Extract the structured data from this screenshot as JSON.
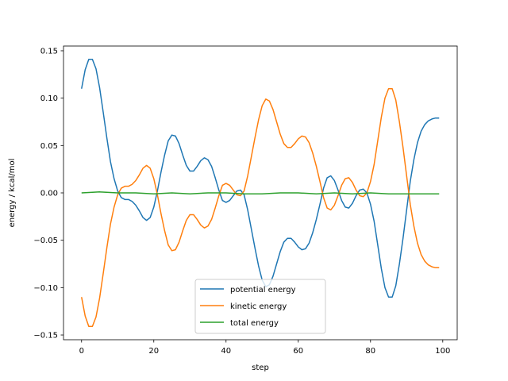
{
  "chart_data": {
    "type": "line",
    "title": "",
    "xlabel": "step",
    "ylabel": "energy / kcal/mol",
    "xlim": [
      -5,
      104
    ],
    "ylim": [
      -0.155,
      0.155
    ],
    "xticks": [
      0,
      20,
      40,
      60,
      80,
      100
    ],
    "yticks": [
      -0.15,
      -0.1,
      -0.05,
      0.0,
      0.05,
      0.1,
      0.15
    ],
    "xtick_labels": [
      "0",
      "20",
      "40",
      "60",
      "80",
      "100"
    ],
    "ytick_labels": [
      "−0.15",
      "−0.10",
      "−0.05",
      "0.00",
      "0.05",
      "0.10",
      "0.15"
    ],
    "grid": false,
    "legend_position": "lower-center",
    "series": [
      {
        "name": "potential energy",
        "color": "#1f77b4",
        "points": [
          [
            0,
            0.11
          ],
          [
            1,
            0.13
          ],
          [
            2,
            0.141
          ],
          [
            3,
            0.141
          ],
          [
            4,
            0.131
          ],
          [
            5,
            0.111
          ],
          [
            6,
            0.085
          ],
          [
            7,
            0.058
          ],
          [
            8,
            0.033
          ],
          [
            9,
            0.015
          ],
          [
            10,
            0.002
          ],
          [
            11,
            -0.005
          ],
          [
            12,
            -0.007
          ],
          [
            13,
            -0.007
          ],
          [
            14,
            -0.009
          ],
          [
            15,
            -0.013
          ],
          [
            16,
            -0.019
          ],
          [
            17,
            -0.026
          ],
          [
            18,
            -0.029
          ],
          [
            19,
            -0.026
          ],
          [
            20,
            -0.015
          ],
          [
            21,
            0.002
          ],
          [
            22,
            0.022
          ],
          [
            23,
            0.04
          ],
          [
            24,
            0.055
          ],
          [
            25,
            0.061
          ],
          [
            26,
            0.06
          ],
          [
            27,
            0.052
          ],
          [
            28,
            0.04
          ],
          [
            29,
            0.029
          ],
          [
            30,
            0.023
          ],
          [
            31,
            0.023
          ],
          [
            32,
            0.028
          ],
          [
            33,
            0.034
          ],
          [
            34,
            0.037
          ],
          [
            35,
            0.035
          ],
          [
            36,
            0.028
          ],
          [
            37,
            0.016
          ],
          [
            38,
            0.003
          ],
          [
            39,
            -0.008
          ],
          [
            40,
            -0.01
          ],
          [
            41,
            -0.008
          ],
          [
            42,
            -0.003
          ],
          [
            43,
            0.002
          ],
          [
            44,
            0.003
          ],
          [
            45,
            -0.002
          ],
          [
            46,
            -0.018
          ],
          [
            47,
            -0.038
          ],
          [
            48,
            -0.058
          ],
          [
            49,
            -0.077
          ],
          [
            50,
            -0.092
          ],
          [
            51,
            -0.099
          ],
          [
            52,
            -0.097
          ],
          [
            53,
            -0.088
          ],
          [
            54,
            -0.075
          ],
          [
            55,
            -0.062
          ],
          [
            56,
            -0.052
          ],
          [
            57,
            -0.048
          ],
          [
            58,
            -0.048
          ],
          [
            59,
            -0.052
          ],
          [
            60,
            -0.057
          ],
          [
            61,
            -0.06
          ],
          [
            62,
            -0.059
          ],
          [
            63,
            -0.053
          ],
          [
            64,
            -0.042
          ],
          [
            65,
            -0.028
          ],
          [
            66,
            -0.012
          ],
          [
            67,
            0.005
          ],
          [
            68,
            0.016
          ],
          [
            69,
            0.018
          ],
          [
            70,
            0.013
          ],
          [
            71,
            0.003
          ],
          [
            72,
            -0.008
          ],
          [
            73,
            -0.015
          ],
          [
            74,
            -0.016
          ],
          [
            75,
            -0.011
          ],
          [
            76,
            -0.003
          ],
          [
            77,
            0.003
          ],
          [
            78,
            0.004
          ],
          [
            79,
            0.0
          ],
          [
            80,
            -0.012
          ],
          [
            81,
            -0.03
          ],
          [
            82,
            -0.055
          ],
          [
            83,
            -0.08
          ],
          [
            84,
            -0.1
          ],
          [
            85,
            -0.11
          ],
          [
            86,
            -0.11
          ],
          [
            87,
            -0.098
          ],
          [
            88,
            -0.075
          ],
          [
            89,
            -0.048
          ],
          [
            90,
            -0.018
          ],
          [
            91,
            0.012
          ],
          [
            92,
            0.035
          ],
          [
            93,
            0.053
          ],
          [
            94,
            0.065
          ],
          [
            95,
            0.072
          ],
          [
            96,
            0.076
          ],
          [
            97,
            0.078
          ],
          [
            98,
            0.079
          ],
          [
            99,
            0.079
          ]
        ]
      },
      {
        "name": "kinetic energy",
        "color": "#ff7f0e",
        "points": [
          [
            0,
            -0.11
          ],
          [
            1,
            -0.13
          ],
          [
            2,
            -0.141
          ],
          [
            3,
            -0.141
          ],
          [
            4,
            -0.131
          ],
          [
            5,
            -0.111
          ],
          [
            6,
            -0.085
          ],
          [
            7,
            -0.058
          ],
          [
            8,
            -0.033
          ],
          [
            9,
            -0.015
          ],
          [
            10,
            -0.002
          ],
          [
            11,
            0.005
          ],
          [
            12,
            0.007
          ],
          [
            13,
            0.007
          ],
          [
            14,
            0.009
          ],
          [
            15,
            0.013
          ],
          [
            16,
            0.019
          ],
          [
            17,
            0.026
          ],
          [
            18,
            0.029
          ],
          [
            19,
            0.026
          ],
          [
            20,
            0.015
          ],
          [
            21,
            -0.002
          ],
          [
            22,
            -0.022
          ],
          [
            23,
            -0.04
          ],
          [
            24,
            -0.055
          ],
          [
            25,
            -0.061
          ],
          [
            26,
            -0.06
          ],
          [
            27,
            -0.052
          ],
          [
            28,
            -0.04
          ],
          [
            29,
            -0.029
          ],
          [
            30,
            -0.023
          ],
          [
            31,
            -0.023
          ],
          [
            32,
            -0.028
          ],
          [
            33,
            -0.034
          ],
          [
            34,
            -0.037
          ],
          [
            35,
            -0.035
          ],
          [
            36,
            -0.028
          ],
          [
            37,
            -0.016
          ],
          [
            38,
            -0.003
          ],
          [
            39,
            0.008
          ],
          [
            40,
            0.01
          ],
          [
            41,
            0.008
          ],
          [
            42,
            0.003
          ],
          [
            43,
            -0.002
          ],
          [
            44,
            -0.003
          ],
          [
            45,
            0.002
          ],
          [
            46,
            0.018
          ],
          [
            47,
            0.038
          ],
          [
            48,
            0.058
          ],
          [
            49,
            0.077
          ],
          [
            50,
            0.092
          ],
          [
            51,
            0.099
          ],
          [
            52,
            0.097
          ],
          [
            53,
            0.088
          ],
          [
            54,
            0.075
          ],
          [
            55,
            0.062
          ],
          [
            56,
            0.052
          ],
          [
            57,
            0.048
          ],
          [
            58,
            0.048
          ],
          [
            59,
            0.052
          ],
          [
            60,
            0.057
          ],
          [
            61,
            0.06
          ],
          [
            62,
            0.059
          ],
          [
            63,
            0.053
          ],
          [
            64,
            0.042
          ],
          [
            65,
            0.028
          ],
          [
            66,
            0.012
          ],
          [
            67,
            -0.005
          ],
          [
            68,
            -0.016
          ],
          [
            69,
            -0.018
          ],
          [
            70,
            -0.013
          ],
          [
            71,
            -0.003
          ],
          [
            72,
            0.008
          ],
          [
            73,
            0.015
          ],
          [
            74,
            0.016
          ],
          [
            75,
            0.011
          ],
          [
            76,
            0.003
          ],
          [
            77,
            -0.003
          ],
          [
            78,
            -0.004
          ],
          [
            79,
            0.0
          ],
          [
            80,
            0.012
          ],
          [
            81,
            0.03
          ],
          [
            82,
            0.055
          ],
          [
            83,
            0.08
          ],
          [
            84,
            0.1
          ],
          [
            85,
            0.11
          ],
          [
            86,
            0.11
          ],
          [
            87,
            0.098
          ],
          [
            88,
            0.075
          ],
          [
            89,
            0.048
          ],
          [
            90,
            0.018
          ],
          [
            91,
            -0.012
          ],
          [
            92,
            -0.035
          ],
          [
            93,
            -0.053
          ],
          [
            94,
            -0.065
          ],
          [
            95,
            -0.072
          ],
          [
            96,
            -0.076
          ],
          [
            97,
            -0.078
          ],
          [
            98,
            -0.079
          ],
          [
            99,
            -0.079
          ]
        ]
      },
      {
        "name": "total energy",
        "color": "#2ca02c",
        "points": [
          [
            0,
            0.0
          ],
          [
            5,
            0.001
          ],
          [
            10,
            0.0
          ],
          [
            15,
            0.0
          ],
          [
            20,
            -0.001
          ],
          [
            25,
            0.0
          ],
          [
            30,
            -0.001
          ],
          [
            35,
            0.0
          ],
          [
            40,
            0.0
          ],
          [
            45,
            -0.001
          ],
          [
            50,
            -0.001
          ],
          [
            55,
            0.0
          ],
          [
            60,
            0.0
          ],
          [
            65,
            -0.001
          ],
          [
            70,
            0.0
          ],
          [
            75,
            -0.001
          ],
          [
            80,
            0.0
          ],
          [
            85,
            -0.001
          ],
          [
            90,
            -0.001
          ],
          [
            95,
            -0.001
          ],
          [
            99,
            -0.001
          ]
        ]
      }
    ]
  }
}
